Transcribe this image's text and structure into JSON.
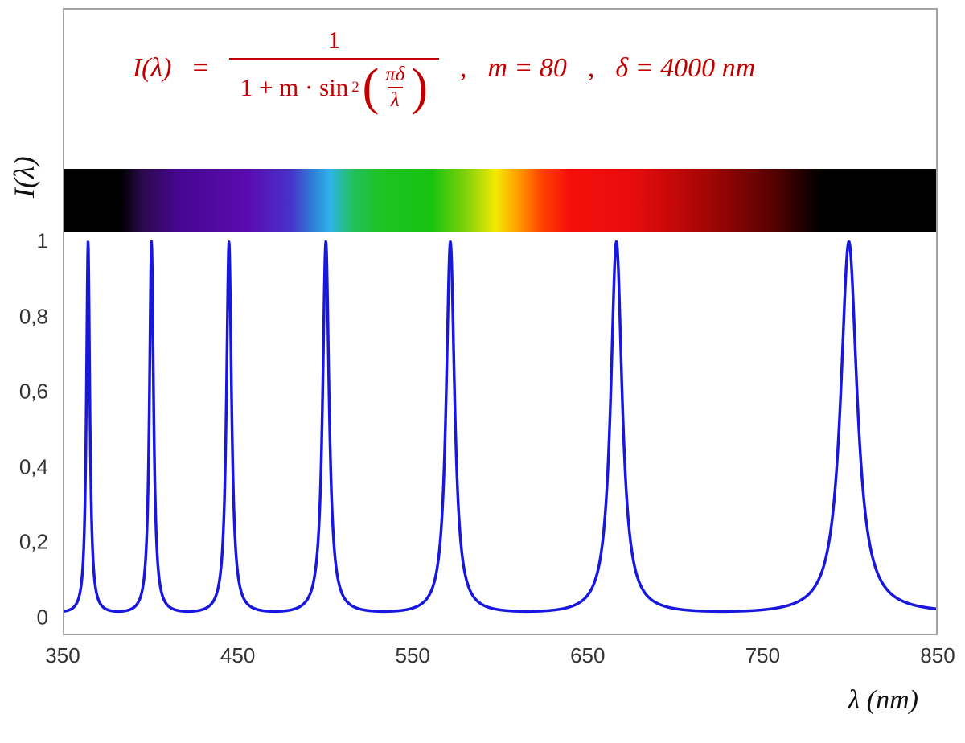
{
  "figure": {
    "y_axis_title": "I(λ)",
    "x_axis_title": "λ  (nm)"
  },
  "formula": {
    "lhs": "I(λ)",
    "equals": "=",
    "numerator": "1",
    "denom_left": "1 + m · sin",
    "denom_sup": "2",
    "paren_open": "(",
    "inner_num": "πδ",
    "inner_den": "λ",
    "paren_close": ")",
    "sep1": ",",
    "param_m": "m = 80",
    "sep2": ",",
    "param_delta": "δ = 4000 nm"
  },
  "chart_data": {
    "type": "line",
    "title": "",
    "function": "I(lambda) = 1 / (1 + m * sin^2(pi * delta / lambda))",
    "params": {
      "m": 80,
      "delta_nm": 4000
    },
    "x_range_nm": [
      350,
      850
    ],
    "ylim": [
      0,
      1
    ],
    "x_ticks": [
      "350",
      "450",
      "550",
      "650",
      "750",
      "850"
    ],
    "x_tick_values": [
      350,
      450,
      550,
      650,
      750,
      850
    ],
    "y_ticks": [
      "0",
      "0,2",
      "0,4",
      "0,6",
      "0,8",
      "1"
    ],
    "y_tick_values": [
      0,
      0.2,
      0.4,
      0.6,
      0.8,
      1
    ],
    "peaks_nm": [
      363.6,
      400,
      444.4,
      500,
      571.4,
      666.7,
      800
    ],
    "peak_intensity": 1,
    "min_intensity": 0.0123,
    "curve_color": "#1717dd",
    "formula_color": "#c00000",
    "frame_color": "#a3a3a3",
    "grid": "off",
    "legend": "none",
    "spectrum_strip_stops": [
      [
        0,
        "#000000"
      ],
      [
        6.5,
        "#000000"
      ],
      [
        9,
        "#2b0a4d"
      ],
      [
        13,
        "#46078f"
      ],
      [
        21,
        "#5a0bb0"
      ],
      [
        26,
        "#4733c9"
      ],
      [
        28.5,
        "#2e7fd6"
      ],
      [
        30.5,
        "#2fb4e8"
      ],
      [
        33,
        "#22c060"
      ],
      [
        36,
        "#1ec326"
      ],
      [
        42,
        "#15c30f"
      ],
      [
        46,
        "#7ed10a"
      ],
      [
        49.5,
        "#f5e903"
      ],
      [
        52,
        "#ff9e00"
      ],
      [
        55,
        "#ff3c00"
      ],
      [
        58,
        "#f50f0b"
      ],
      [
        65,
        "#e80c0c"
      ],
      [
        70,
        "#c40808"
      ],
      [
        76,
        "#8f0404"
      ],
      [
        82,
        "#4d0101"
      ],
      [
        85.5,
        "#120000"
      ],
      [
        87,
        "#000000"
      ],
      [
        100,
        "#000000"
      ]
    ]
  }
}
